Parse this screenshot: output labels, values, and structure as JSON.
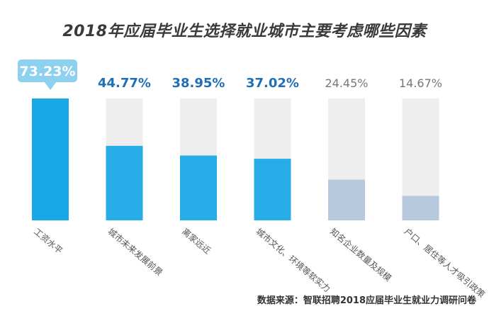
{
  "chart_data": {
    "type": "bar",
    "title": "2018年应届毕业生选择就业城市主要考虑哪些因素",
    "categories": [
      "工资水平",
      "城市未来发展前景",
      "离家远近",
      "城市文化、环境等软实力",
      "知名企业数量及规模",
      "户口、居住等人才吸引政策"
    ],
    "values": [
      73.23,
      44.77,
      38.95,
      37.02,
      24.45,
      14.67
    ],
    "value_labels": [
      "73.23%",
      "44.77%",
      "38.95%",
      "37.02%",
      "24.45%",
      "14.67%"
    ],
    "ylim": [
      0,
      100
    ],
    "grid": false,
    "legend": "none"
  },
  "source": "数据来源：智联招聘2018应届毕业生就业力调研问卷",
  "colors": {
    "top_bar": "#1aa7e8",
    "blue_bar": "#27aee8",
    "muted_bar": "#b7c9dc",
    "track": "#eeeeee",
    "highlight_label": "#1f6fb6",
    "muted_label": "#777777",
    "callout_bg": "#8ed1ef",
    "callout_text": "#ffffff"
  }
}
